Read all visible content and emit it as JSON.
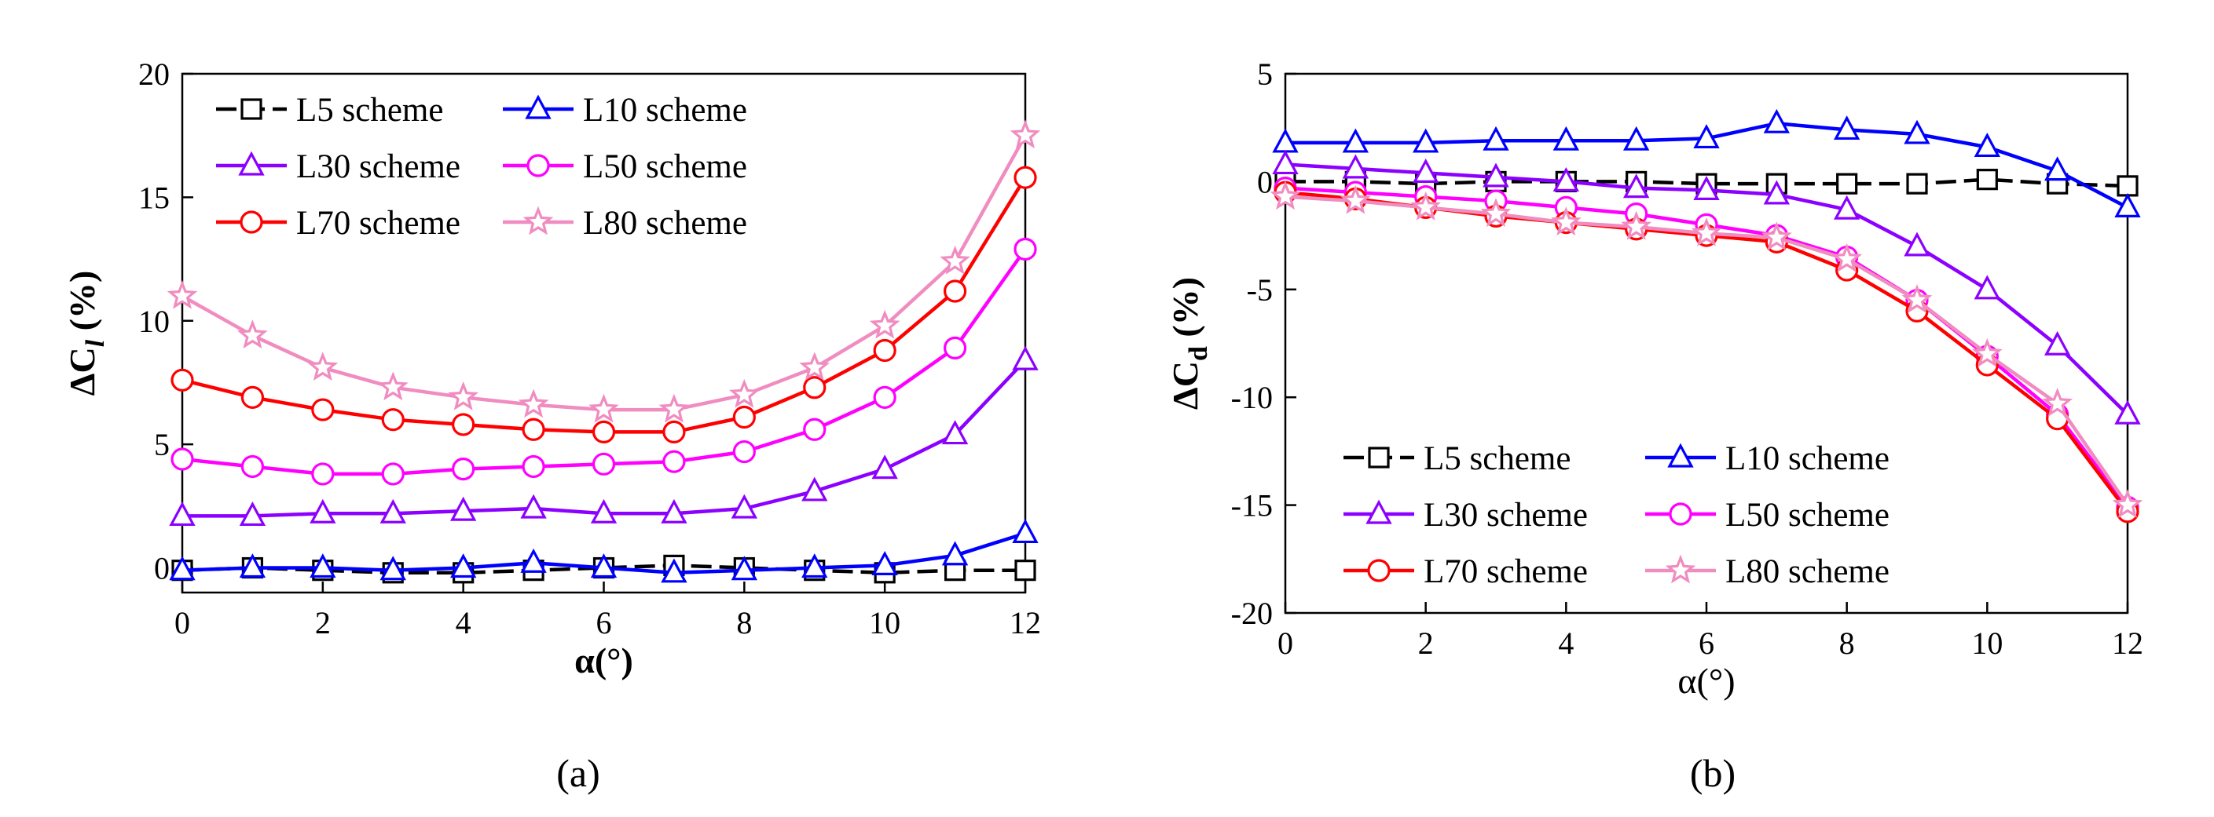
{
  "chart_data": [
    {
      "type": "line",
      "panel_label": "a",
      "xlabel": "α(°)",
      "ylabel_main": "ΔC",
      "ylabel_sub": "l",
      "ylabel_unit": " (%)",
      "xlim": [
        0,
        12
      ],
      "ylim": [
        -1,
        20
      ],
      "xticks": [
        0,
        2,
        4,
        6,
        8,
        10,
        12
      ],
      "yticks": [
        0,
        5,
        10,
        15,
        20
      ],
      "grid": false,
      "legend_position": "top-left",
      "x": [
        0,
        1,
        2,
        3,
        4,
        5,
        6,
        7,
        8,
        9,
        10,
        11,
        12
      ],
      "series": [
        {
          "name": "L5 scheme",
          "color": "#000000",
          "marker": "square",
          "dashed": true,
          "values": [
            -0.1,
            0.0,
            -0.1,
            -0.2,
            -0.2,
            -0.1,
            0.0,
            0.1,
            0.0,
            -0.1,
            -0.2,
            -0.1,
            -0.1
          ]
        },
        {
          "name": "L10 scheme",
          "color": "#0000ff",
          "marker": "triangle",
          "dashed": false,
          "values": [
            -0.1,
            0.0,
            0.0,
            -0.1,
            0.0,
            0.2,
            0.0,
            -0.2,
            -0.1,
            0.0,
            0.1,
            0.5,
            1.4
          ]
        },
        {
          "name": "L30 scheme",
          "color": "#8b00ff",
          "marker": "triangle",
          "dashed": false,
          "values": [
            2.1,
            2.1,
            2.2,
            2.2,
            2.3,
            2.4,
            2.2,
            2.2,
            2.4,
            3.1,
            4.0,
            5.4,
            8.4
          ]
        },
        {
          "name": "L50 scheme",
          "color": "#ff00ff",
          "marker": "circle",
          "dashed": false,
          "values": [
            4.4,
            4.1,
            3.8,
            3.8,
            4.0,
            4.1,
            4.2,
            4.3,
            4.7,
            5.6,
            6.9,
            8.9,
            12.9
          ]
        },
        {
          "name": "L70 scheme",
          "color": "#ff0000",
          "marker": "circle",
          "dashed": false,
          "values": [
            7.6,
            6.9,
            6.4,
            6.0,
            5.8,
            5.6,
            5.5,
            5.5,
            6.1,
            7.3,
            8.8,
            11.2,
            15.8
          ]
        },
        {
          "name": "L80 scheme",
          "color": "#f08cc0",
          "marker": "star",
          "dashed": false,
          "values": [
            11.0,
            9.4,
            8.1,
            7.3,
            6.9,
            6.6,
            6.4,
            6.4,
            7.0,
            8.1,
            9.8,
            12.4,
            17.5
          ]
        }
      ]
    },
    {
      "type": "line",
      "panel_label": "b",
      "xlabel": "α(°)",
      "ylabel_main": "ΔC",
      "ylabel_sub": "d",
      "ylabel_unit": " (%)",
      "xlim": [
        0,
        12
      ],
      "ylim": [
        -20,
        5
      ],
      "xticks": [
        0,
        2,
        4,
        6,
        8,
        10,
        12
      ],
      "yticks": [
        5,
        0,
        -5,
        -10,
        -15,
        -20
      ],
      "grid": false,
      "legend_position": "bottom-left",
      "x": [
        0,
        1,
        2,
        3,
        4,
        5,
        6,
        7,
        8,
        9,
        10,
        11,
        12
      ],
      "series": [
        {
          "name": "L5 scheme",
          "color": "#000000",
          "marker": "square",
          "dashed": true,
          "values": [
            0.0,
            0.0,
            -0.1,
            0.0,
            0.0,
            0.0,
            -0.1,
            -0.1,
            -0.1,
            -0.1,
            0.1,
            -0.1,
            -0.2
          ]
        },
        {
          "name": "L10 scheme",
          "color": "#0000ff",
          "marker": "triangle",
          "dashed": false,
          "values": [
            1.8,
            1.8,
            1.8,
            1.9,
            1.9,
            1.9,
            2.0,
            2.7,
            2.4,
            2.2,
            1.6,
            0.5,
            -1.2
          ]
        },
        {
          "name": "L30 scheme",
          "color": "#8b00ff",
          "marker": "triangle",
          "dashed": false,
          "values": [
            0.8,
            0.6,
            0.4,
            0.2,
            0.0,
            -0.3,
            -0.4,
            -0.6,
            -1.3,
            -3.0,
            -5.0,
            -7.6,
            -10.8
          ]
        },
        {
          "name": "L50 scheme",
          "color": "#ff00ff",
          "marker": "circle",
          "dashed": false,
          "values": [
            -0.3,
            -0.5,
            -0.7,
            -0.9,
            -1.2,
            -1.5,
            -2.0,
            -2.5,
            -3.5,
            -5.5,
            -8.1,
            -10.8,
            -15.1
          ]
        },
        {
          "name": "L70 scheme",
          "color": "#ff0000",
          "marker": "circle",
          "dashed": false,
          "values": [
            -0.5,
            -0.8,
            -1.2,
            -1.6,
            -1.9,
            -2.2,
            -2.5,
            -2.8,
            -4.1,
            -6.0,
            -8.5,
            -11.0,
            -15.3
          ]
        },
        {
          "name": "L80 scheme",
          "color": "#f08cc0",
          "marker": "star",
          "dashed": false,
          "values": [
            -0.7,
            -0.9,
            -1.2,
            -1.5,
            -1.9,
            -2.1,
            -2.4,
            -2.6,
            -3.6,
            -5.5,
            -8.0,
            -10.3,
            -15.0
          ]
        }
      ]
    }
  ],
  "captions": [
    "(a)",
    "(b)"
  ]
}
